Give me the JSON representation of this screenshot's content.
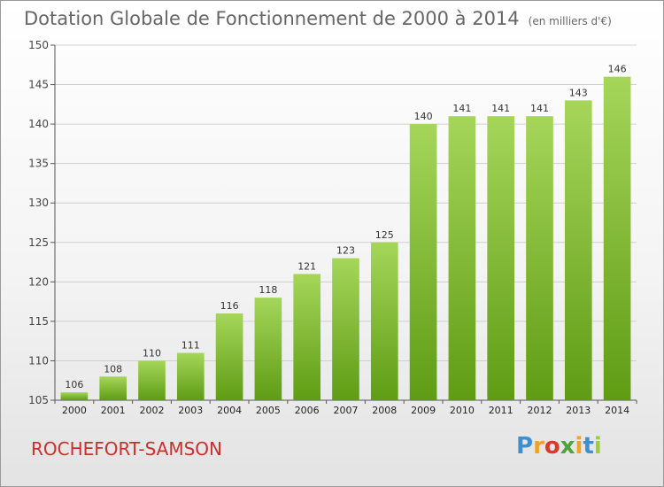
{
  "title": "Dotation Globale de Fonctionnement de 2000 à 2014",
  "unit": "(en milliers d'€)",
  "commune": "ROCHEFORT-SAMSON",
  "logo": {
    "letters": [
      "P",
      "r",
      "o",
      "x",
      "i",
      "t",
      "i"
    ],
    "colors": [
      "#3d8fd0",
      "#f2a127",
      "#d93a2b",
      "#4da43c",
      "#f2a127",
      "#3d8fd0",
      "#9ccb3b"
    ]
  },
  "colors": {
    "bar_light": "#a5d65a",
    "bar_dark": "#5f9c14",
    "axis": "#555555",
    "grid": "#cfcfcf"
  },
  "chart_data": {
    "type": "bar",
    "categories": [
      "2000",
      "2001",
      "2002",
      "2003",
      "2004",
      "2005",
      "2006",
      "2007",
      "2008",
      "2009",
      "2010",
      "2011",
      "2012",
      "2013",
      "2014"
    ],
    "values": [
      106,
      108,
      110,
      111,
      116,
      118,
      121,
      123,
      125,
      140,
      141,
      141,
      141,
      143,
      146
    ],
    "ylim": [
      105,
      150
    ],
    "yticks": [
      105,
      110,
      115,
      120,
      125,
      130,
      135,
      140,
      145,
      150
    ],
    "grid": "horizontal",
    "legend": "none"
  }
}
